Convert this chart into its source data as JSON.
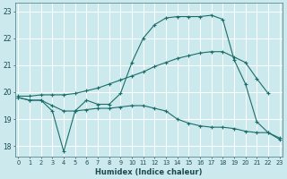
{
  "title": "",
  "xlabel": "Humidex (Indice chaleur)",
  "ylabel": "",
  "background_color": "#cce9ed",
  "grid_color": "#ffffff",
  "line_color": "#1a6e6a",
  "x_ticks": [
    0,
    1,
    2,
    3,
    4,
    5,
    6,
    7,
    8,
    9,
    10,
    11,
    12,
    13,
    14,
    15,
    16,
    17,
    18,
    19,
    20,
    21,
    22,
    23
  ],
  "y_ticks": [
    18,
    19,
    20,
    21,
    22,
    23
  ],
  "xlim": [
    -0.3,
    23.3
  ],
  "ylim": [
    17.6,
    23.3
  ],
  "series": [
    {
      "x": [
        0,
        1,
        2,
        3,
        4,
        5,
        6,
        7,
        8,
        9,
        10,
        11,
        12,
        13,
        14,
        15,
        16,
        17,
        18,
        19,
        20,
        21,
        22,
        23
      ],
      "y": [
        19.8,
        19.7,
        19.7,
        19.3,
        17.8,
        19.3,
        19.7,
        19.55,
        19.55,
        19.95,
        21.1,
        22.0,
        22.5,
        22.75,
        22.8,
        22.8,
        22.8,
        22.85,
        22.7,
        21.2,
        20.3,
        18.9,
        18.5,
        18.25
      ]
    },
    {
      "x": [
        0,
        1,
        2,
        3,
        4,
        5,
        6,
        7,
        8,
        9,
        10,
        11,
        12,
        13,
        14,
        15,
        16,
        17,
        18,
        19,
        20,
        21,
        22,
        23
      ],
      "y": [
        19.85,
        19.85,
        19.9,
        19.9,
        19.9,
        19.95,
        20.05,
        20.15,
        20.3,
        20.45,
        20.6,
        20.75,
        20.95,
        21.1,
        21.25,
        21.35,
        21.45,
        21.5,
        21.5,
        21.3,
        21.1,
        20.5,
        19.95,
        null
      ]
    },
    {
      "x": [
        0,
        1,
        2,
        3,
        4,
        5,
        6,
        7,
        8,
        9,
        10,
        11,
        12,
        13,
        14,
        15,
        16,
        17,
        18,
        19,
        20,
        21,
        22,
        23
      ],
      "y": [
        19.8,
        19.7,
        19.7,
        19.5,
        19.3,
        19.3,
        19.35,
        19.4,
        19.4,
        19.45,
        19.5,
        19.5,
        19.4,
        19.3,
        19.0,
        18.85,
        18.75,
        18.7,
        18.7,
        18.65,
        18.55,
        18.5,
        18.5,
        18.3
      ]
    }
  ]
}
